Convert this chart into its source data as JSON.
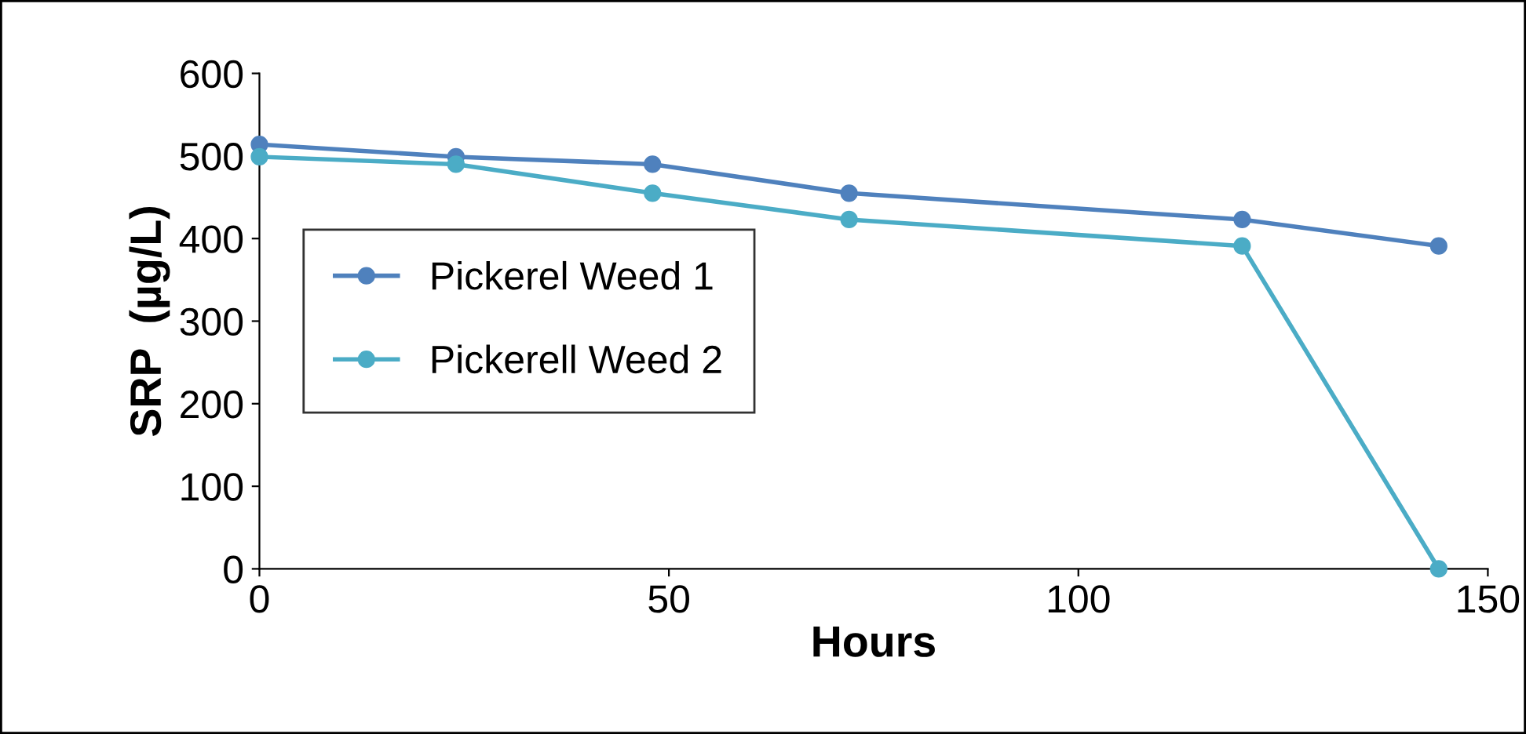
{
  "chart_data": {
    "type": "line",
    "xlabel": "Hours",
    "ylabel": "SRP  (µg/L)",
    "x": [
      0,
      24,
      48,
      72,
      120,
      144
    ],
    "series": [
      {
        "name": "Pickerel Weed 1",
        "color": "#4f81bd",
        "values": [
          514,
          499,
          490,
          455,
          423,
          391
        ]
      },
      {
        "name": "Pickerell Weed 2",
        "color": "#4bacc6",
        "values": [
          499,
          490,
          455,
          423,
          391,
          0
        ]
      }
    ],
    "xlim": [
      0,
      150
    ],
    "xticks": [
      0,
      50,
      100,
      150
    ],
    "ylim": [
      0,
      600
    ],
    "yticks": [
      0,
      100,
      200,
      300,
      400,
      500,
      600
    ],
    "grid": false,
    "legend": "left",
    "marker": "circle",
    "line_style": "solid"
  }
}
